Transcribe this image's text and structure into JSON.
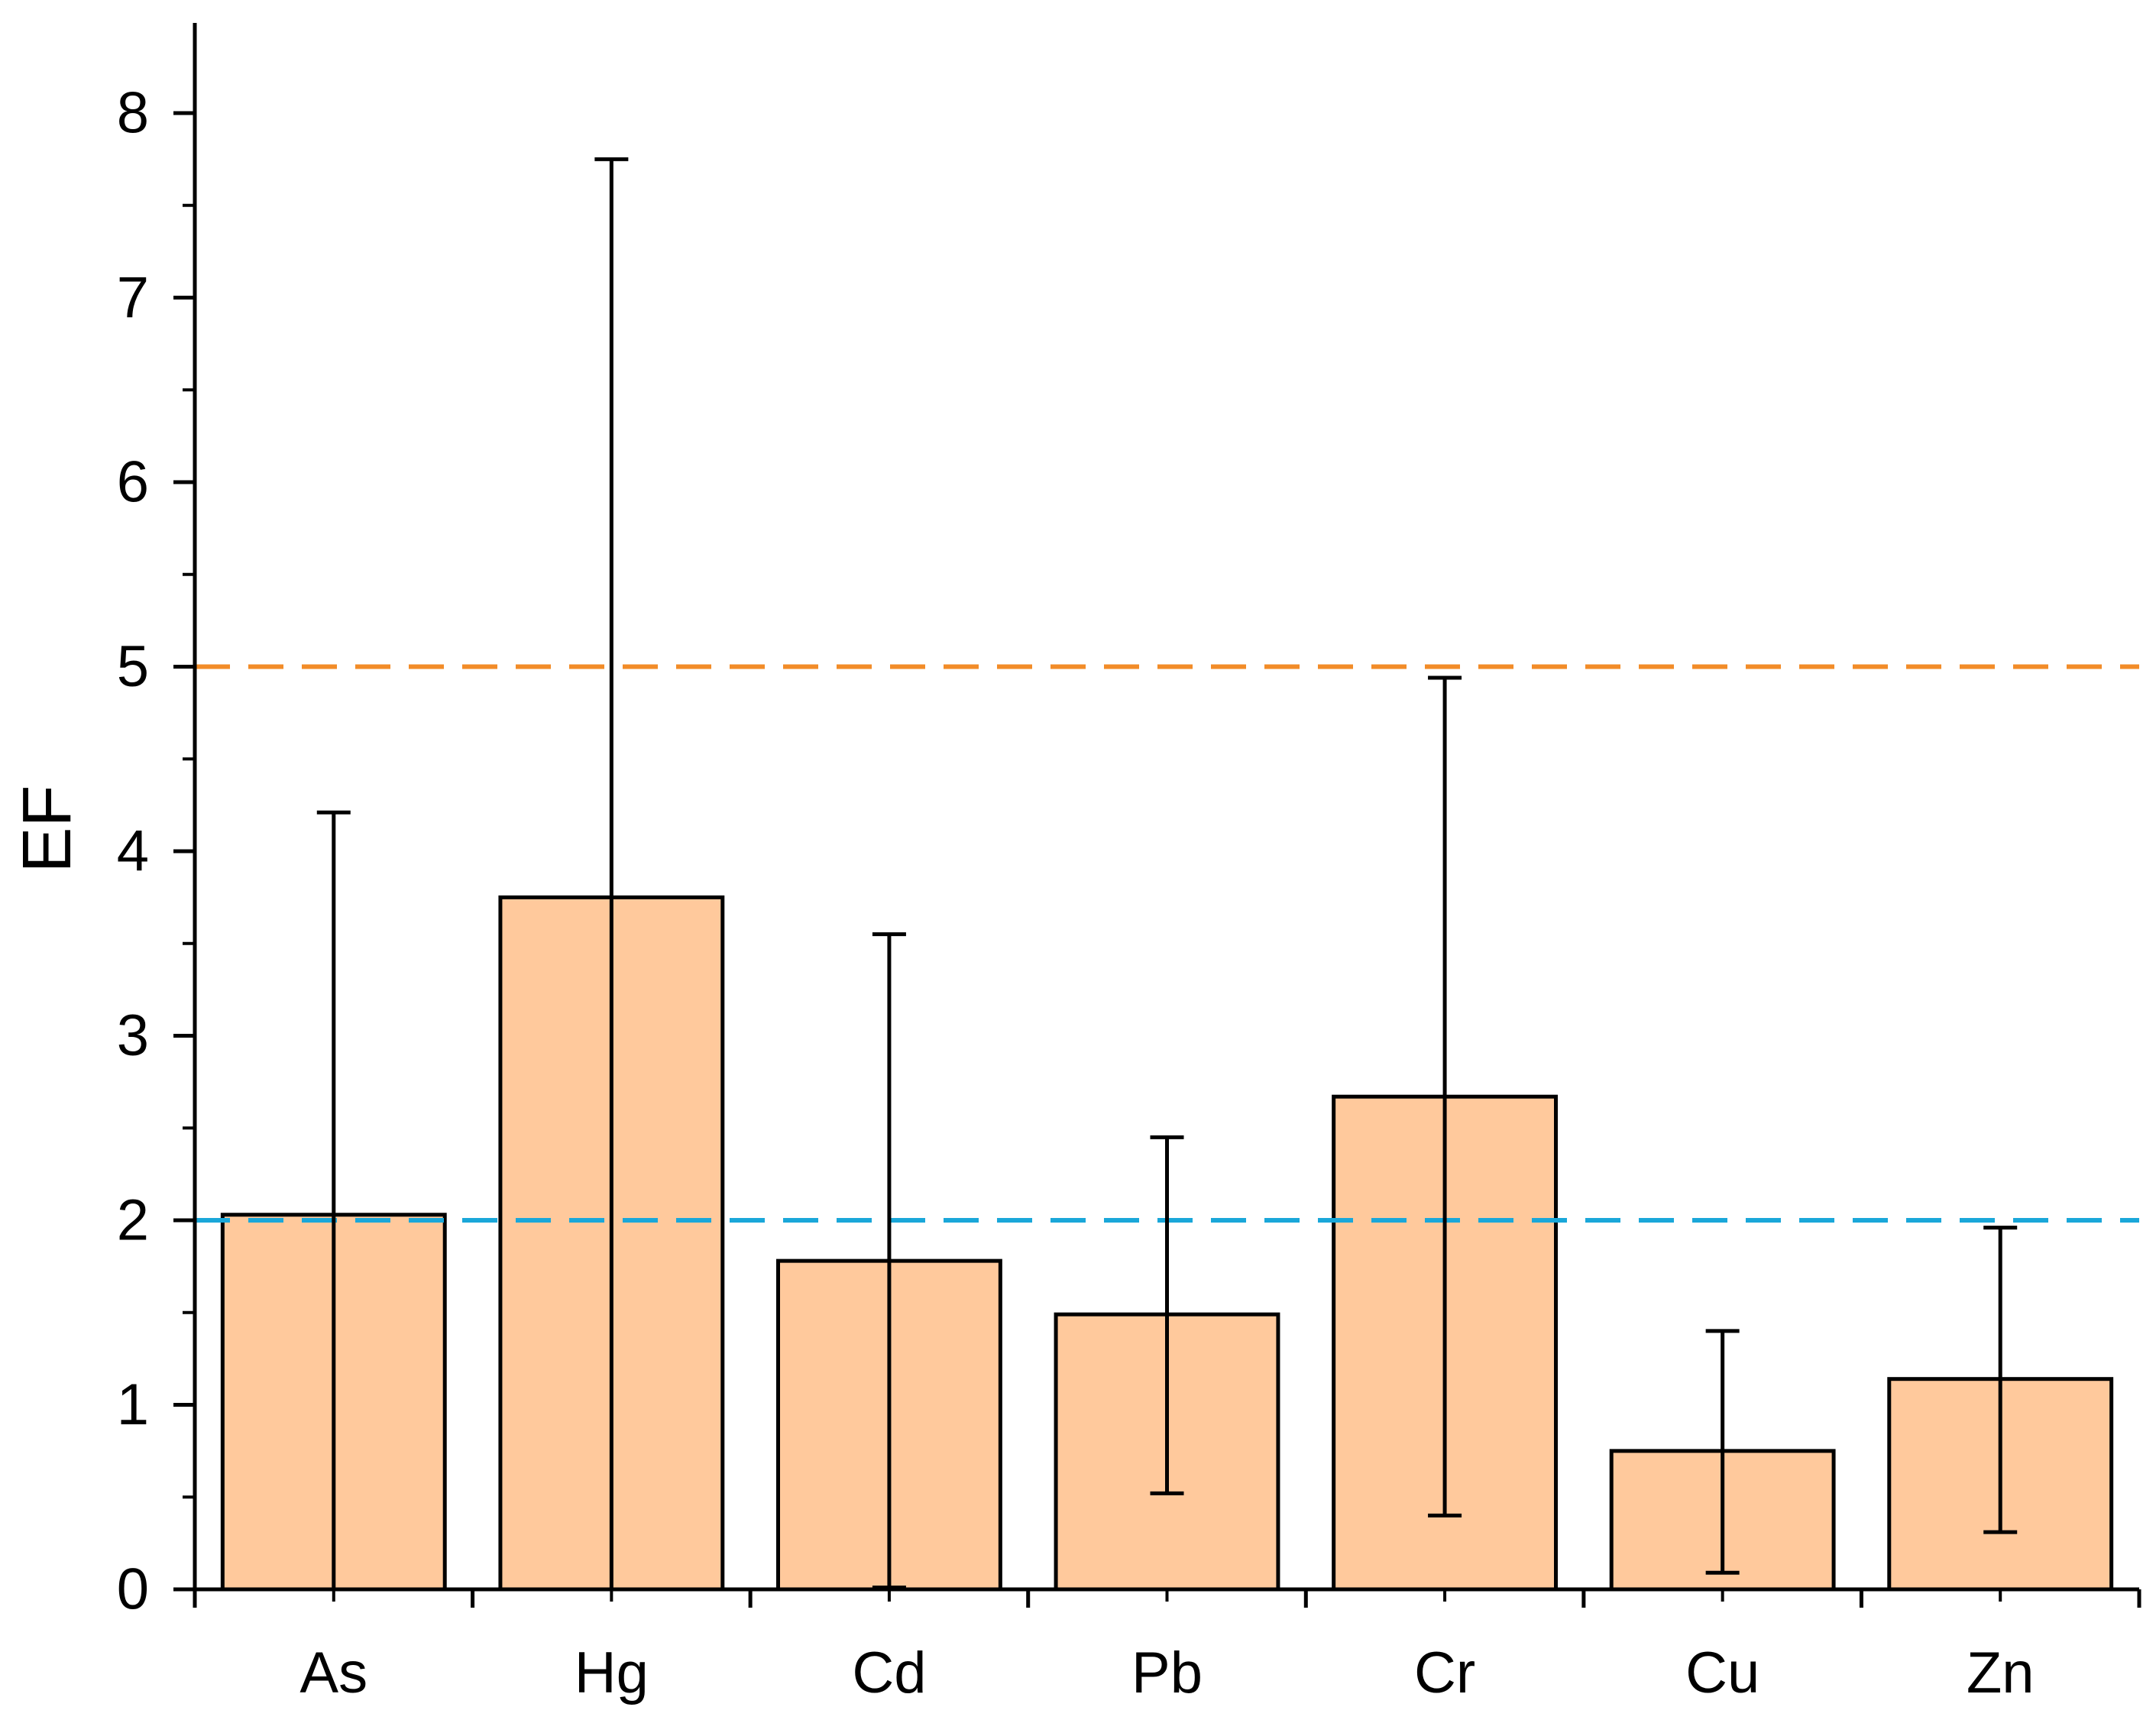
{
  "chart_data": {
    "type": "bar",
    "title": "",
    "xlabel": "",
    "ylabel": "EF",
    "categories": [
      "As",
      "Hg",
      "Cd",
      "Pb",
      "Cr",
      "Cu",
      "Zn"
    ],
    "values": [
      2.03,
      3.75,
      1.78,
      1.49,
      2.67,
      0.75,
      1.14
    ],
    "error_bars": {
      "upper": [
        4.21,
        7.75,
        3.55,
        2.45,
        4.94,
        1.4,
        1.96
      ],
      "lower": [
        0.0,
        0.0,
        0.01,
        0.52,
        0.4,
        0.09,
        0.31
      ]
    },
    "ylim": [
      0,
      8.5
    ],
    "yticks": [
      0,
      1,
      2,
      3,
      4,
      5,
      6,
      7,
      8
    ],
    "reference_lines": [
      {
        "value": 5,
        "style": "dashed",
        "color": "#F28C28"
      },
      {
        "value": 2,
        "style": "dashed",
        "color": "#1AA7D9"
      }
    ],
    "colors": {
      "bar_fill": "#FFC99C",
      "bar_stroke": "#000000",
      "axis": "#000000"
    },
    "grid": false,
    "legend": "none"
  }
}
